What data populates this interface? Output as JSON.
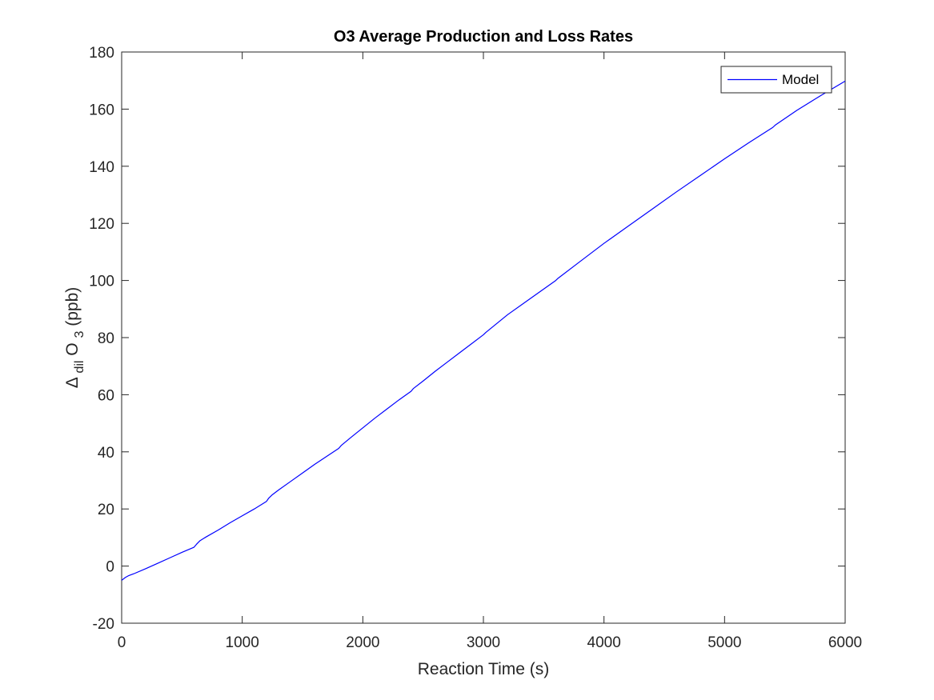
{
  "chart_data": {
    "type": "line",
    "title": "O3 Average Production and Loss Rates",
    "xlabel": "Reaction Time (s)",
    "ylabel": {
      "prefix": "Δ",
      "sub1": "dil",
      "main": "O",
      "sub2": "3",
      "suffix": " (ppb)"
    },
    "xlim": [
      0,
      6000
    ],
    "ylim": [
      -20,
      180
    ],
    "xticks": [
      0,
      1000,
      2000,
      3000,
      4000,
      5000,
      6000
    ],
    "yticks": [
      -20,
      0,
      20,
      40,
      60,
      80,
      100,
      120,
      140,
      160,
      180
    ],
    "grid": false,
    "legend_position": "top-right",
    "series": [
      {
        "name": "Model",
        "color": "#0000ff",
        "x": [
          0,
          30,
          60,
          100,
          200,
          300,
          400,
          500,
          600,
          620,
          650,
          700,
          800,
          900,
          1000,
          1100,
          1200,
          1220,
          1250,
          1300,
          1400,
          1500,
          1600,
          1700,
          1800,
          1820,
          1900,
          2000,
          2100,
          2200,
          2300,
          2400,
          2420,
          2500,
          2600,
          2700,
          2800,
          2900,
          3000,
          3020,
          3200,
          3400,
          3600,
          3620,
          3800,
          4000,
          4200,
          4400,
          4600,
          4800,
          5000,
          5200,
          5400,
          5420,
          5600,
          5800,
          6000
        ],
        "y": [
          -5,
          -4,
          -3.3,
          -2.7,
          -0.9,
          1.0,
          2.9,
          4.8,
          6.6,
          7.6,
          8.9,
          10.2,
          12.6,
          15.2,
          17.6,
          20.0,
          22.6,
          23.8,
          25.0,
          26.6,
          29.6,
          32.6,
          35.6,
          38.4,
          41.2,
          42.2,
          45.0,
          48.4,
          51.8,
          55.0,
          58.2,
          61.2,
          62.2,
          64.8,
          68.2,
          71.4,
          74.6,
          77.8,
          81.0,
          81.8,
          88.0,
          94.0,
          100.0,
          100.8,
          106.6,
          113.0,
          119.0,
          125.0,
          131.0,
          136.8,
          142.6,
          148.2,
          153.6,
          154.4,
          159.6,
          164.8,
          169.8
        ]
      }
    ]
  }
}
